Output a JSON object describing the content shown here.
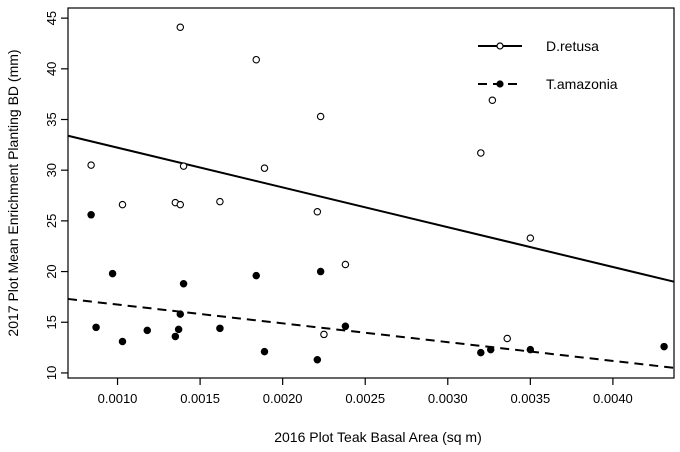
{
  "chart_data": {
    "type": "scatter",
    "title": "",
    "xlabel": "2016 Plot Teak Basal Area (sq m)",
    "ylabel": "2017 Plot Mean Enrichment Planting BD (mm)",
    "xlim": [
      0.0007,
      0.00437
    ],
    "ylim": [
      9.5,
      46
    ],
    "x_ticks": [
      0.001,
      0.0015,
      0.002,
      0.0025,
      0.003,
      0.0035,
      0.004
    ],
    "x_tick_labels": [
      "0.0010",
      "0.0015",
      "0.0020",
      "0.0025",
      "0.0030",
      "0.0035",
      "0.0040"
    ],
    "y_ticks": [
      10,
      15,
      20,
      25,
      30,
      35,
      40,
      45
    ],
    "y_tick_labels": [
      "10",
      "15",
      "20",
      "25",
      "30",
      "35",
      "40",
      "45"
    ],
    "grid": false,
    "legend_position": "top-right",
    "series": [
      {
        "name": "D.retusa",
        "marker": "open-circle",
        "line_style": "solid",
        "color": "#000000",
        "points": [
          {
            "x": 0.00084,
            "y": 30.5
          },
          {
            "x": 0.00103,
            "y": 26.6
          },
          {
            "x": 0.00135,
            "y": 26.8
          },
          {
            "x": 0.00138,
            "y": 26.6
          },
          {
            "x": 0.00138,
            "y": 44.1
          },
          {
            "x": 0.0014,
            "y": 30.4
          },
          {
            "x": 0.00162,
            "y": 26.9
          },
          {
            "x": 0.00184,
            "y": 40.9
          },
          {
            "x": 0.00189,
            "y": 30.2
          },
          {
            "x": 0.00221,
            "y": 25.9
          },
          {
            "x": 0.00223,
            "y": 35.3
          },
          {
            "x": 0.00225,
            "y": 13.8
          },
          {
            "x": 0.00238,
            "y": 20.7
          },
          {
            "x": 0.0032,
            "y": 31.7
          },
          {
            "x": 0.00327,
            "y": 36.9
          },
          {
            "x": 0.00336,
            "y": 13.4
          },
          {
            "x": 0.0035,
            "y": 23.3
          }
        ],
        "trend": [
          {
            "x": 0.0007,
            "y": 33.4
          },
          {
            "x": 0.00437,
            "y": 19.0
          }
        ]
      },
      {
        "name": "T.amazonia",
        "marker": "filled-circle",
        "line_style": "dashed",
        "color": "#000000",
        "points": [
          {
            "x": 0.00084,
            "y": 25.6
          },
          {
            "x": 0.00087,
            "y": 14.5
          },
          {
            "x": 0.00097,
            "y": 19.8
          },
          {
            "x": 0.00103,
            "y": 13.1
          },
          {
            "x": 0.00118,
            "y": 14.2
          },
          {
            "x": 0.00135,
            "y": 13.6
          },
          {
            "x": 0.00137,
            "y": 14.3
          },
          {
            "x": 0.00138,
            "y": 15.8
          },
          {
            "x": 0.0014,
            "y": 18.8
          },
          {
            "x": 0.00162,
            "y": 14.4
          },
          {
            "x": 0.00184,
            "y": 19.6
          },
          {
            "x": 0.00189,
            "y": 12.1
          },
          {
            "x": 0.00221,
            "y": 11.3
          },
          {
            "x": 0.00223,
            "y": 20.0
          },
          {
            "x": 0.00238,
            "y": 14.6
          },
          {
            "x": 0.0032,
            "y": 12.0
          },
          {
            "x": 0.00326,
            "y": 12.3
          },
          {
            "x": 0.0035,
            "y": 12.3
          },
          {
            "x": 0.00431,
            "y": 12.6
          }
        ],
        "trend": [
          {
            "x": 0.0007,
            "y": 17.3
          },
          {
            "x": 0.00437,
            "y": 10.5
          }
        ]
      }
    ]
  }
}
